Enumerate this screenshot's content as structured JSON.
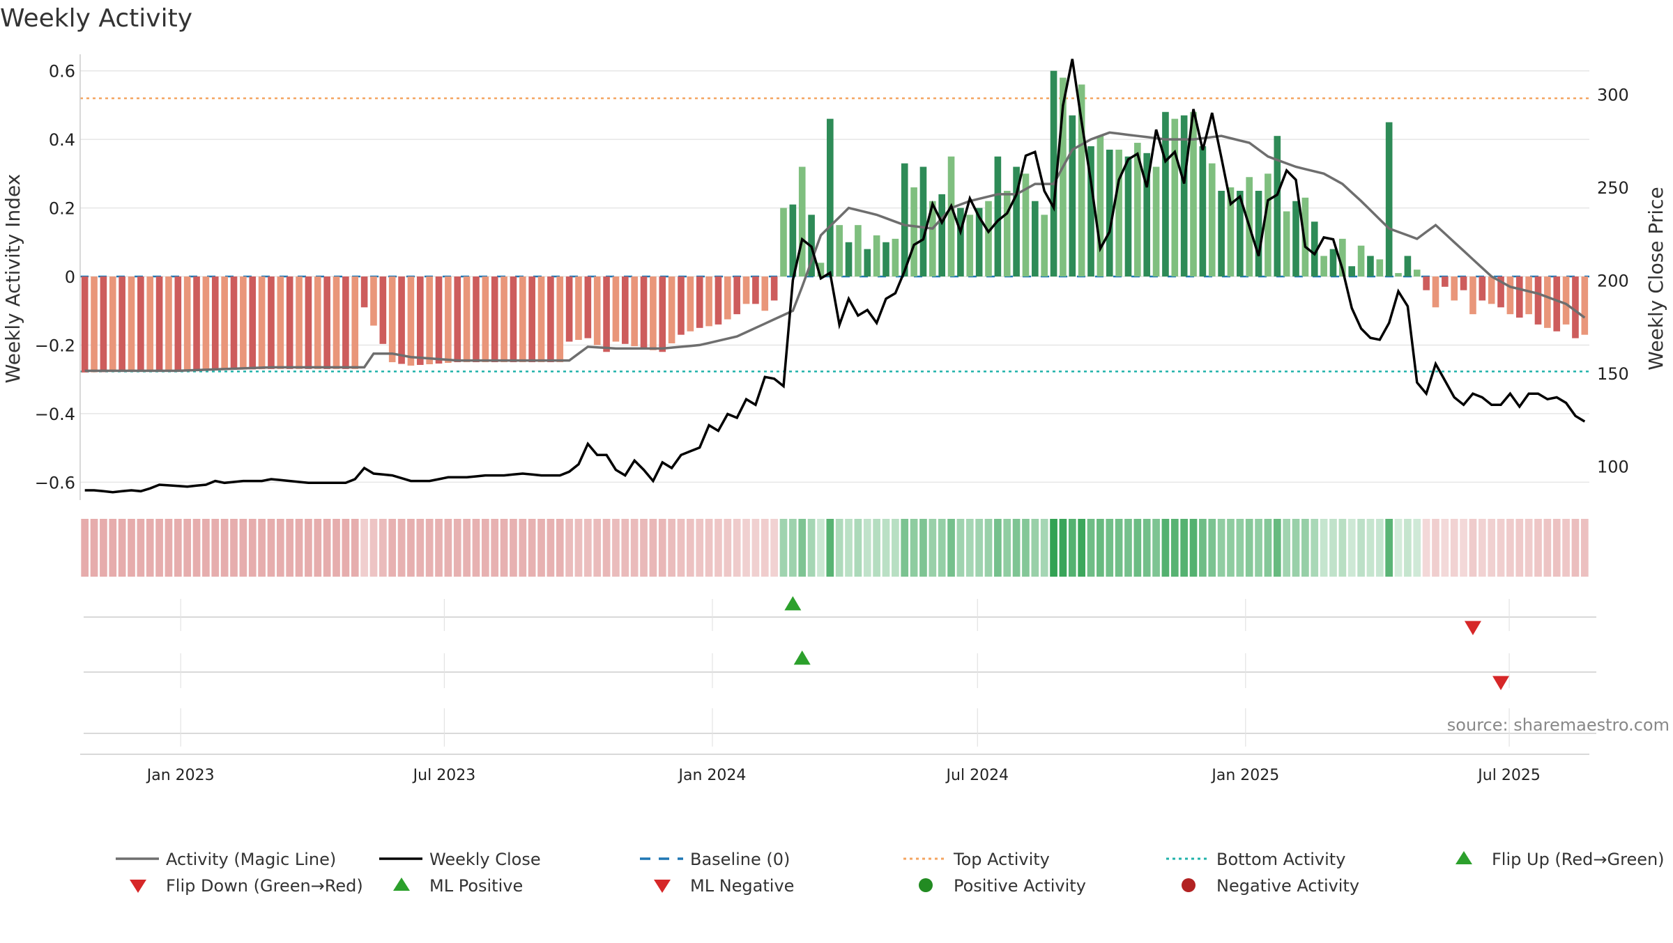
{
  "chart_data": {
    "type": "bar",
    "title": "Weekly Activity",
    "source": "source: sharemaestro.com",
    "ylabel_left": "Weekly Activity Index",
    "ylabel_right": "Weekly Close Price",
    "x_ticks": [
      "Jan 2023",
      "Jul 2023",
      "Jan 2024",
      "Jul 2024",
      "Jan 2025",
      "Jul 2025"
    ],
    "x_tick_dates": [
      "2023-01-01",
      "2023-07-01",
      "2024-01-01",
      "2024-07-01",
      "2025-01-01",
      "2025-07-01"
    ],
    "x_range": [
      "2022-10-24",
      "2025-08-25"
    ],
    "y_left_ticks": [
      "0.6",
      "0.4",
      "0.2",
      "0",
      "−0.2",
      "−0.4",
      "−0.6"
    ],
    "y_left_tick_values": [
      0.6,
      0.4,
      0.2,
      0,
      -0.2,
      -0.4,
      -0.6
    ],
    "y_left_range": [
      -0.64,
      0.64
    ],
    "y_right_ticks": [
      "300",
      "250",
      "200",
      "150",
      "100"
    ],
    "y_right_tick_values": [
      300,
      250,
      200,
      150,
      100
    ],
    "y_right_range": [
      84,
      320
    ],
    "top_activity": 0.52,
    "bottom_activity": -0.277,
    "bar_count": 148,
    "close_points": [
      {
        "w": 0,
        "v": 87
      },
      {
        "w": 1,
        "v": 87
      },
      {
        "w": 3,
        "v": 86
      },
      {
        "w": 5,
        "v": 87
      },
      {
        "w": 6,
        "v": 86.5
      },
      {
        "w": 7,
        "v": 88
      },
      {
        "w": 8,
        "v": 90
      },
      {
        "w": 11,
        "v": 89
      },
      {
        "w": 13,
        "v": 90
      },
      {
        "w": 14,
        "v": 92
      },
      {
        "w": 15,
        "v": 91
      },
      {
        "w": 17,
        "v": 92
      },
      {
        "w": 19,
        "v": 92
      },
      {
        "w": 20,
        "v": 93
      },
      {
        "w": 22,
        "v": 92
      },
      {
        "w": 24,
        "v": 91
      },
      {
        "w": 26,
        "v": 91
      },
      {
        "w": 28,
        "v": 91
      },
      {
        "w": 29,
        "v": 93
      },
      {
        "w": 30,
        "v": 99
      },
      {
        "w": 31,
        "v": 96
      },
      {
        "w": 33,
        "v": 95
      },
      {
        "w": 35,
        "v": 92
      },
      {
        "w": 37,
        "v": 92
      },
      {
        "w": 39,
        "v": 94
      },
      {
        "w": 41,
        "v": 94
      },
      {
        "w": 43,
        "v": 95
      },
      {
        "w": 45,
        "v": 95
      },
      {
        "w": 47,
        "v": 96
      },
      {
        "w": 49,
        "v": 95
      },
      {
        "w": 51,
        "v": 95
      },
      {
        "w": 52,
        "v": 97
      },
      {
        "w": 53,
        "v": 101
      },
      {
        "w": 54,
        "v": 112
      },
      {
        "w": 55,
        "v": 106
      },
      {
        "w": 56,
        "v": 106
      },
      {
        "w": 57,
        "v": 98
      },
      {
        "w": 58,
        "v": 95
      },
      {
        "w": 59,
        "v": 103
      },
      {
        "w": 60,
        "v": 98
      },
      {
        "w": 61,
        "v": 92
      },
      {
        "w": 62,
        "v": 102
      },
      {
        "w": 63,
        "v": 99
      },
      {
        "w": 64,
        "v": 106
      },
      {
        "w": 65,
        "v": 108
      },
      {
        "w": 66,
        "v": 110
      },
      {
        "w": 67,
        "v": 122
      },
      {
        "w": 68,
        "v": 119
      },
      {
        "w": 69,
        "v": 128
      },
      {
        "w": 70,
        "v": 126
      },
      {
        "w": 71,
        "v": 136
      },
      {
        "w": 72,
        "v": 133
      },
      {
        "w": 73,
        "v": 148
      },
      {
        "w": 74,
        "v": 147
      },
      {
        "w": 75,
        "v": 143
      },
      {
        "w": 76,
        "v": 200
      },
      {
        "w": 77,
        "v": 222
      },
      {
        "w": 78,
        "v": 218
      },
      {
        "w": 79,
        "v": 201
      },
      {
        "w": 80,
        "v": 204
      },
      {
        "w": 81,
        "v": 176
      },
      {
        "w": 82,
        "v": 190
      },
      {
        "w": 83,
        "v": 181
      },
      {
        "w": 84,
        "v": 184
      },
      {
        "w": 85,
        "v": 177
      },
      {
        "w": 86,
        "v": 190
      },
      {
        "w": 87,
        "v": 193
      },
      {
        "w": 88,
        "v": 205
      },
      {
        "w": 89,
        "v": 219
      },
      {
        "w": 90,
        "v": 222
      },
      {
        "w": 91,
        "v": 241
      },
      {
        "w": 92,
        "v": 231
      },
      {
        "w": 93,
        "v": 240
      },
      {
        "w": 94,
        "v": 226
      },
      {
        "w": 95,
        "v": 244
      },
      {
        "w": 96,
        "v": 234
      },
      {
        "w": 97,
        "v": 226
      },
      {
        "w": 98,
        "v": 232
      },
      {
        "w": 99,
        "v": 236
      },
      {
        "w": 100,
        "v": 246
      },
      {
        "w": 101,
        "v": 267
      },
      {
        "w": 102,
        "v": 269
      },
      {
        "w": 103,
        "v": 248
      },
      {
        "w": 104,
        "v": 239
      },
      {
        "w": 105,
        "v": 294
      },
      {
        "w": 106,
        "v": 319
      },
      {
        "w": 107,
        "v": 285
      },
      {
        "w": 108,
        "v": 253
      },
      {
        "w": 109,
        "v": 217
      },
      {
        "w": 110,
        "v": 226
      },
      {
        "w": 111,
        "v": 254
      },
      {
        "w": 112,
        "v": 265
      },
      {
        "w": 113,
        "v": 268
      },
      {
        "w": 114,
        "v": 250
      },
      {
        "w": 115,
        "v": 281
      },
      {
        "w": 116,
        "v": 264
      },
      {
        "w": 117,
        "v": 269
      },
      {
        "w": 118,
        "v": 252
      },
      {
        "w": 119,
        "v": 292
      },
      {
        "w": 120,
        "v": 270
      },
      {
        "w": 121,
        "v": 290
      },
      {
        "w": 122,
        "v": 266
      },
      {
        "w": 123,
        "v": 241
      },
      {
        "w": 124,
        "v": 245
      },
      {
        "w": 125,
        "v": 229
      },
      {
        "w": 126,
        "v": 213
      },
      {
        "w": 127,
        "v": 243
      },
      {
        "w": 128,
        "v": 246
      },
      {
        "w": 129,
        "v": 259
      },
      {
        "w": 130,
        "v": 254
      },
      {
        "w": 131,
        "v": 218
      },
      {
        "w": 132,
        "v": 214
      },
      {
        "w": 133,
        "v": 223
      },
      {
        "w": 134,
        "v": 222
      },
      {
        "w": 135,
        "v": 206
      },
      {
        "w": 136,
        "v": 185
      },
      {
        "w": 137,
        "v": 174
      },
      {
        "w": 138,
        "v": 169
      },
      {
        "w": 139,
        "v": 168
      },
      {
        "w": 140,
        "v": 177
      },
      {
        "w": 141,
        "v": 194
      },
      {
        "w": 142,
        "v": 186
      },
      {
        "w": 143,
        "v": 145
      },
      {
        "w": 144,
        "v": 139
      },
      {
        "w": 145,
        "v": 155
      },
      {
        "w": 146,
        "v": 146
      },
      {
        "w": 147,
        "v": 137
      },
      {
        "w": 148,
        "v": 133
      },
      {
        "w": 149,
        "v": 139
      },
      {
        "w": 150,
        "v": 137
      },
      {
        "w": 151,
        "v": 133
      },
      {
        "w": 152,
        "v": 133
      },
      {
        "w": 153,
        "v": 139
      },
      {
        "w": 154,
        "v": 132
      },
      {
        "w": 155,
        "v": 139
      },
      {
        "w": 156,
        "v": 139
      },
      {
        "w": 157,
        "v": 136
      },
      {
        "w": 158,
        "v": 137
      },
      {
        "w": 159,
        "v": 134
      },
      {
        "w": 160,
        "v": 127
      },
      {
        "w": 161,
        "v": 124
      }
    ],
    "magic_points": [
      {
        "w": 0,
        "v": -0.275
      },
      {
        "w": 10,
        "v": -0.275
      },
      {
        "w": 20,
        "v": -0.265
      },
      {
        "w": 30,
        "v": -0.265
      },
      {
        "w": 31,
        "v": -0.225
      },
      {
        "w": 33,
        "v": -0.225
      },
      {
        "w": 35,
        "v": -0.235
      },
      {
        "w": 40,
        "v": -0.245
      },
      {
        "w": 45,
        "v": -0.245
      },
      {
        "w": 52,
        "v": -0.245
      },
      {
        "w": 54,
        "v": -0.205
      },
      {
        "w": 57,
        "v": -0.21
      },
      {
        "w": 62,
        "v": -0.21
      },
      {
        "w": 66,
        "v": -0.2
      },
      {
        "w": 70,
        "v": -0.175
      },
      {
        "w": 74,
        "v": -0.125
      },
      {
        "w": 76,
        "v": -0.1
      },
      {
        "w": 77,
        "v": -0.03
      },
      {
        "w": 79,
        "v": 0.12
      },
      {
        "w": 82,
        "v": 0.2
      },
      {
        "w": 85,
        "v": 0.18
      },
      {
        "w": 88,
        "v": 0.15
      },
      {
        "w": 91,
        "v": 0.14
      },
      {
        "w": 93,
        "v": 0.2
      },
      {
        "w": 95,
        "v": 0.22
      },
      {
        "w": 98,
        "v": 0.24
      },
      {
        "w": 100,
        "v": 0.24
      },
      {
        "w": 102,
        "v": 0.27
      },
      {
        "w": 104,
        "v": 0.27
      },
      {
        "w": 106,
        "v": 0.37
      },
      {
        "w": 108,
        "v": 0.4
      },
      {
        "w": 110,
        "v": 0.42
      },
      {
        "w": 113,
        "v": 0.41
      },
      {
        "w": 116,
        "v": 0.4
      },
      {
        "w": 119,
        "v": 0.4
      },
      {
        "w": 122,
        "v": 0.41
      },
      {
        "w": 125,
        "v": 0.39
      },
      {
        "w": 127,
        "v": 0.35
      },
      {
        "w": 130,
        "v": 0.32
      },
      {
        "w": 133,
        "v": 0.3
      },
      {
        "w": 135,
        "v": 0.27
      },
      {
        "w": 137,
        "v": 0.22
      },
      {
        "w": 140,
        "v": 0.14
      },
      {
        "w": 143,
        "v": 0.11
      },
      {
        "w": 145,
        "v": 0.15
      },
      {
        "w": 147,
        "v": 0.1
      },
      {
        "w": 149,
        "v": 0.05
      },
      {
        "w": 151,
        "v": 0.0
      },
      {
        "w": 153,
        "v": -0.03
      },
      {
        "w": 156,
        "v": -0.05
      },
      {
        "w": 159,
        "v": -0.08
      },
      {
        "w": 161,
        "v": -0.12
      }
    ],
    "bar_points": [
      {
        "w": 0,
        "v": -0.28
      },
      {
        "w": 20,
        "v": -0.27
      },
      {
        "w": 29,
        "v": -0.27
      },
      {
        "w": 30,
        "v": -0.09
      },
      {
        "w": 33,
        "v": -0.25
      },
      {
        "w": 35,
        "v": -0.26
      },
      {
        "w": 40,
        "v": -0.25
      },
      {
        "w": 44,
        "v": -0.25
      },
      {
        "w": 51,
        "v": -0.25
      },
      {
        "w": 52,
        "v": -0.19
      },
      {
        "w": 54,
        "v": -0.18
      },
      {
        "w": 55,
        "v": -0.2
      },
      {
        "w": 56,
        "v": -0.22
      },
      {
        "w": 57,
        "v": -0.19
      },
      {
        "w": 60,
        "v": -0.21
      },
      {
        "w": 62,
        "v": -0.22
      },
      {
        "w": 64,
        "v": -0.17
      },
      {
        "w": 66,
        "v": -0.15
      },
      {
        "w": 68,
        "v": -0.14
      },
      {
        "w": 70,
        "v": -0.11
      },
      {
        "w": 71,
        "v": -0.08
      },
      {
        "w": 72,
        "v": -0.08
      },
      {
        "w": 73,
        "v": -0.1
      },
      {
        "w": 74,
        "v": -0.07
      },
      {
        "w": 75,
        "v": 0.2
      },
      {
        "w": 76,
        "v": 0.21
      },
      {
        "w": 77,
        "v": 0.32
      },
      {
        "w": 78,
        "v": 0.18
      },
      {
        "w": 79,
        "v": 0.04
      },
      {
        "w": 80,
        "v": 0.46
      },
      {
        "w": 81,
        "v": 0.15
      },
      {
        "w": 82,
        "v": 0.1
      },
      {
        "w": 83,
        "v": 0.15
      },
      {
        "w": 84,
        "v": 0.08
      },
      {
        "w": 85,
        "v": 0.12
      },
      {
        "w": 86,
        "v": 0.1
      },
      {
        "w": 87,
        "v": 0.11
      },
      {
        "w": 88,
        "v": 0.33
      },
      {
        "w": 89,
        "v": 0.26
      },
      {
        "w": 90,
        "v": 0.32
      },
      {
        "w": 91,
        "v": 0.22
      },
      {
        "w": 92,
        "v": 0.24
      },
      {
        "w": 93,
        "v": 0.35
      },
      {
        "w": 94,
        "v": 0.2
      },
      {
        "w": 95,
        "v": 0.18
      },
      {
        "w": 96,
        "v": 0.2
      },
      {
        "w": 97,
        "v": 0.22
      },
      {
        "w": 98,
        "v": 0.35
      },
      {
        "w": 99,
        "v": 0.25
      },
      {
        "w": 100,
        "v": 0.32
      },
      {
        "w": 101,
        "v": 0.3
      },
      {
        "w": 102,
        "v": 0.22
      },
      {
        "w": 103,
        "v": 0.18
      },
      {
        "w": 104,
        "v": 0.6
      },
      {
        "w": 105,
        "v": 0.58
      },
      {
        "w": 106,
        "v": 0.47
      },
      {
        "w": 107,
        "v": 0.56
      },
      {
        "w": 108,
        "v": 0.38
      },
      {
        "w": 109,
        "v": 0.41
      },
      {
        "w": 110,
        "v": 0.37
      },
      {
        "w": 111,
        "v": 0.37
      },
      {
        "w": 112,
        "v": 0.35
      },
      {
        "w": 113,
        "v": 0.39
      },
      {
        "w": 114,
        "v": 0.36
      },
      {
        "w": 115,
        "v": 0.32
      },
      {
        "w": 116,
        "v": 0.48
      },
      {
        "w": 117,
        "v": 0.46
      },
      {
        "w": 118,
        "v": 0.47
      },
      {
        "w": 119,
        "v": 0.48
      },
      {
        "w": 120,
        "v": 0.38
      },
      {
        "w": 121,
        "v": 0.33
      },
      {
        "w": 122,
        "v": 0.25
      },
      {
        "w": 123,
        "v": 0.26
      },
      {
        "w": 124,
        "v": 0.25
      },
      {
        "w": 125,
        "v": 0.29
      },
      {
        "w": 126,
        "v": 0.25
      },
      {
        "w": 127,
        "v": 0.3
      },
      {
        "w": 128,
        "v": 0.41
      },
      {
        "w": 129,
        "v": 0.19
      },
      {
        "w": 130,
        "v": 0.22
      },
      {
        "w": 131,
        "v": 0.23
      },
      {
        "w": 132,
        "v": 0.16
      },
      {
        "w": 133,
        "v": 0.06
      },
      {
        "w": 134,
        "v": 0.08
      },
      {
        "w": 135,
        "v": 0.11
      },
      {
        "w": 136,
        "v": 0.03
      },
      {
        "w": 137,
        "v": 0.09
      },
      {
        "w": 138,
        "v": 0.06
      },
      {
        "w": 139,
        "v": 0.05
      },
      {
        "w": 140,
        "v": 0.45
      },
      {
        "w": 141,
        "v": 0.01
      },
      {
        "w": 142,
        "v": 0.06
      },
      {
        "w": 143,
        "v": 0.02
      },
      {
        "w": 144,
        "v": -0.04
      },
      {
        "w": 145,
        "v": -0.09
      },
      {
        "w": 146,
        "v": -0.03
      },
      {
        "w": 147,
        "v": -0.07
      },
      {
        "w": 148,
        "v": -0.04
      },
      {
        "w": 149,
        "v": -0.11
      },
      {
        "w": 150,
        "v": -0.07
      },
      {
        "w": 151,
        "v": -0.08
      },
      {
        "w": 152,
        "v": -0.09
      },
      {
        "w": 153,
        "v": -0.11
      },
      {
        "w": 154,
        "v": -0.12
      },
      {
        "w": 155,
        "v": -0.11
      },
      {
        "w": 156,
        "v": -0.14
      },
      {
        "w": 157,
        "v": -0.15
      },
      {
        "w": 158,
        "v": -0.16
      },
      {
        "w": 159,
        "v": -0.14
      },
      {
        "w": 160,
        "v": -0.18
      },
      {
        "w": 161,
        "v": -0.17
      }
    ],
    "flip_up_week": 76,
    "flip_down_week": 149,
    "ml_positive_week": 77,
    "ml_negative_week": 152,
    "colors": {
      "pos_dark": "#2e8b57",
      "pos_light": "#7fbf7f",
      "neg_dark": "#cd5c5c",
      "neg_light": "#e9967a",
      "close": "#000000",
      "magic": "#6e6e6e",
      "top": "#f4a460",
      "bottom": "#20b2aa",
      "baseline": "#1f77b4",
      "flip_up": "#2ca02c",
      "flip_down": "#d62728",
      "ml_pos": "#2ca02c",
      "ml_neg": "#d62728",
      "pos_dot": "#228b22",
      "neg_dot": "#b22222"
    },
    "legend": [
      {
        "label": "Activity (Magic Line)",
        "marker": "line",
        "color": "#6e6e6e"
      },
      {
        "label": "Weekly Close",
        "marker": "line",
        "color": "#000000"
      },
      {
        "label": "Baseline (0)",
        "marker": "dash",
        "color": "#1f77b4"
      },
      {
        "label": "Top Activity",
        "marker": "dotted",
        "color": "#f4a460"
      },
      {
        "label": "Bottom Activity",
        "marker": "dotted",
        "color": "#20b2aa"
      },
      {
        "label": "Flip Up (Red→Green)",
        "marker": "triangle-up",
        "color": "#2ca02c"
      },
      {
        "label": "Flip Down (Green→Red)",
        "marker": "triangle-down",
        "color": "#d62728"
      },
      {
        "label": "ML Positive",
        "marker": "triangle-up",
        "color": "#2ca02c"
      },
      {
        "label": "ML Negative",
        "marker": "triangle-down",
        "color": "#d62728"
      },
      {
        "label": "Positive Activity",
        "marker": "circle",
        "color": "#228b22"
      },
      {
        "label": "Negative Activity",
        "marker": "circle",
        "color": "#b22222"
      }
    ]
  }
}
